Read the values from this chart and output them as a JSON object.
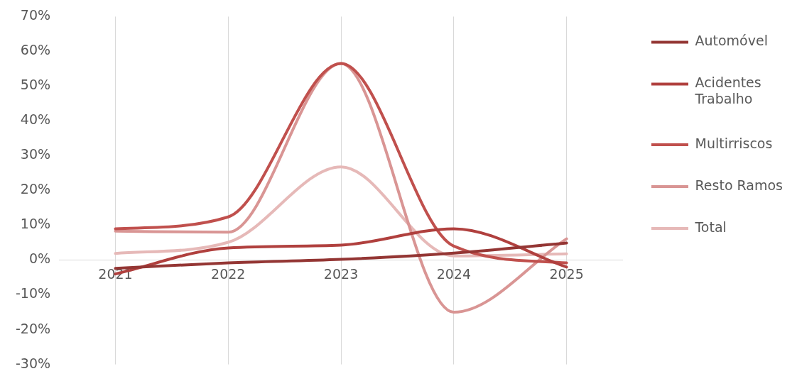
{
  "chart_data": {
    "type": "line",
    "categories": [
      "2021",
      "2022",
      "2023",
      "2024",
      "2025"
    ],
    "series": [
      {
        "name": "Automóvel",
        "color": "#943634",
        "values": [
          -2.4,
          -0.8,
          0.2,
          2.0,
          4.9
        ]
      },
      {
        "name": "Acidentes Trabalho",
        "color": "#b0403e",
        "values": [
          -4,
          3.5,
          4.3,
          9,
          -2
        ]
      },
      {
        "name": "Multirriscos",
        "color": "#c0504d",
        "values": [
          9,
          12.4,
          56.5,
          4,
          -0.8
        ]
      },
      {
        "name": "Resto Ramos",
        "color": "#d99594",
        "values": [
          8.3,
          8,
          56.5,
          -15,
          6.1
        ]
      },
      {
        "name": "Total",
        "color": "#e6b9b8",
        "values": [
          1.9,
          5.1,
          26.8,
          1.2,
          1.8
        ]
      }
    ],
    "ylim": [
      -30,
      70
    ],
    "yticks": [
      {
        "value": -30,
        "label": "-30%"
      },
      {
        "value": -20,
        "label": "-20%"
      },
      {
        "value": -10,
        "label": "-10%"
      },
      {
        "value": 0,
        "label": "0%"
      },
      {
        "value": 10,
        "label": "10%"
      },
      {
        "value": 20,
        "label": "20%"
      },
      {
        "value": 30,
        "label": "30%"
      },
      {
        "value": 40,
        "label": "40%"
      },
      {
        "value": 50,
        "label": "50%"
      },
      {
        "value": 60,
        "label": "60%"
      },
      {
        "value": 70,
        "label": "70%"
      }
    ],
    "grid": "x",
    "legend": "right",
    "marker": "none",
    "line_style": "solid"
  }
}
